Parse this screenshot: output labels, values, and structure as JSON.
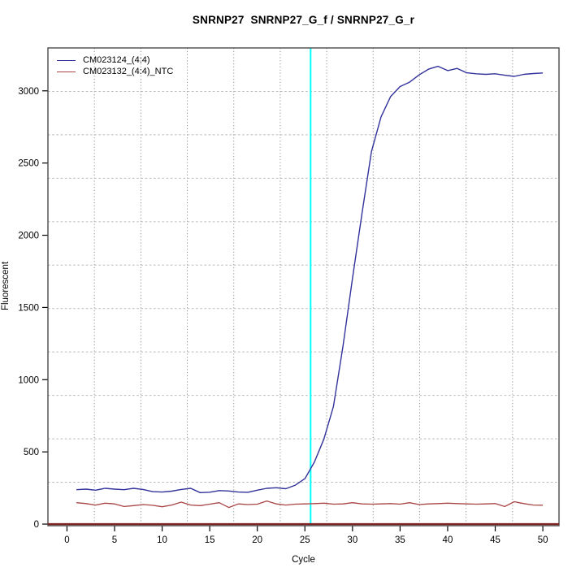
{
  "chart_data": {
    "type": "line",
    "title": "SNRNP27  SNRNP27_G_f / SNRNP27_G_r",
    "xlabel": "Cycle",
    "ylabel": "Fluorescent",
    "xlim": [
      -2.0,
      51.7
    ],
    "ylim": [
      -11,
      3297
    ],
    "xticks": [
      0,
      5,
      10,
      15,
      20,
      25,
      30,
      35,
      40,
      45,
      50
    ],
    "yticks": [
      0,
      500,
      1000,
      1500,
      2000,
      2500,
      3000
    ],
    "grid": "dotted gray, 10 evenly spaced interior lines per axis",
    "legend_position": "top-left",
    "threshold_line": {
      "x": 25.6,
      "color": "#00ffff"
    },
    "zero_line": {
      "y": 0,
      "color": "#7e2222"
    },
    "x": [
      1,
      2,
      3,
      4,
      5,
      6,
      7,
      8,
      9,
      10,
      11,
      12,
      13,
      14,
      15,
      16,
      17,
      18,
      19,
      20,
      21,
      22,
      23,
      24,
      25,
      26,
      27,
      28,
      29,
      30,
      31,
      32,
      33,
      34,
      35,
      36,
      37,
      38,
      39,
      40,
      41,
      42,
      43,
      44,
      45,
      46,
      47,
      48,
      49,
      50
    ],
    "series": [
      {
        "name": "CM023124_(4:4)",
        "color": "#32329b",
        "values": [
          238,
          242,
          235,
          248,
          242,
          238,
          248,
          240,
          225,
          222,
          228,
          240,
          248,
          218,
          221,
          232,
          229,
          222,
          220,
          235,
          248,
          252,
          245,
          270,
          315,
          430,
          590,
          815,
          1230,
          1700,
          2150,
          2580,
          2820,
          2960,
          3030,
          3060,
          3110,
          3150,
          3170,
          3140,
          3155,
          3125,
          3118,
          3114,
          3118,
          3108,
          3100,
          3114,
          3120,
          3124
        ]
      },
      {
        "name": "CM023132_(4:4)_NTC",
        "color": "#a84444",
        "values": [
          148,
          142,
          132,
          145,
          140,
          122,
          128,
          135,
          130,
          120,
          132,
          152,
          132,
          128,
          138,
          148,
          115,
          140,
          135,
          138,
          160,
          140,
          132,
          138,
          140,
          142,
          145,
          138,
          140,
          148,
          140,
          138,
          140,
          142,
          138,
          148,
          135,
          140,
          142,
          145,
          142,
          140,
          138,
          140,
          142,
          122,
          155,
          142,
          132,
          131
        ]
      }
    ]
  }
}
